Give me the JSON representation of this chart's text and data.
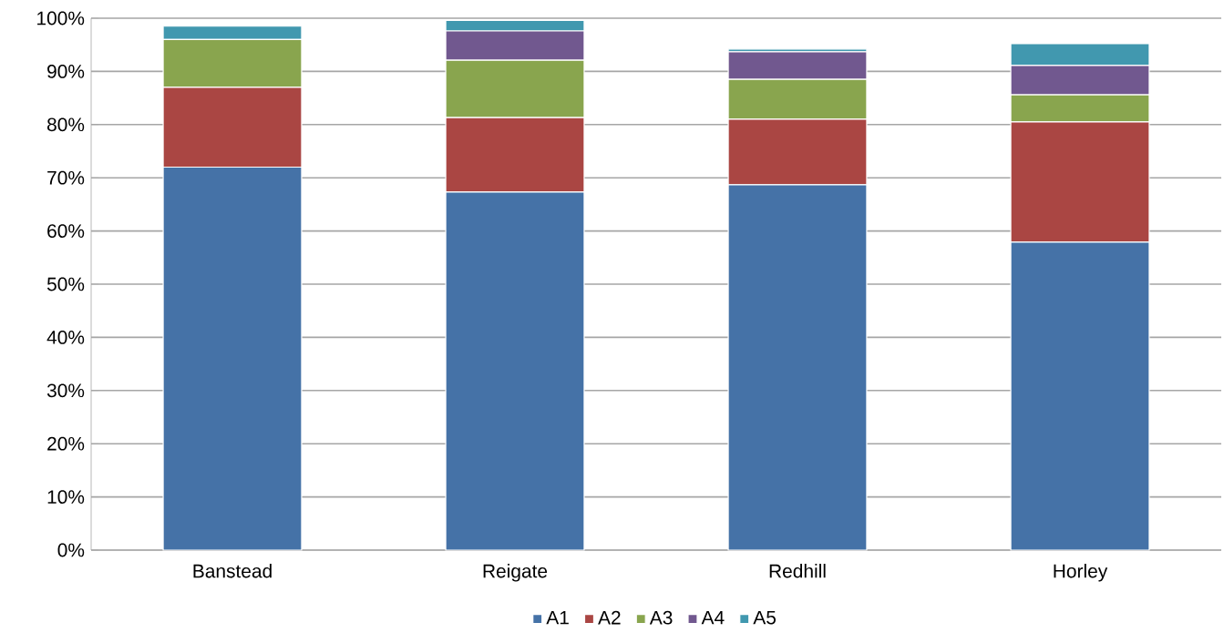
{
  "chart_data": {
    "type": "bar",
    "stacked": true,
    "categories": [
      "Banstead",
      "Reigate",
      "Redhill",
      "Horley"
    ],
    "series": [
      {
        "name": "A1",
        "color": "#4572a7",
        "values": [
          72,
          67.3,
          68.7,
          57.9
        ]
      },
      {
        "name": "A2",
        "color": "#aa4643",
        "values": [
          15,
          14,
          12.3,
          22.6
        ]
      },
      {
        "name": "A3",
        "color": "#89a54e",
        "values": [
          9,
          10.8,
          7.5,
          5.1
        ]
      },
      {
        "name": "A4",
        "color": "#71588f",
        "values": [
          0,
          5.5,
          5.2,
          5.5
        ]
      },
      {
        "name": "A5",
        "color": "#4198af",
        "values": [
          2.5,
          2,
          0.5,
          4.1
        ]
      }
    ],
    "ylim": [
      0,
      100
    ],
    "yticks": [
      {
        "value": 0,
        "label": "0%"
      },
      {
        "value": 10,
        "label": "10%"
      },
      {
        "value": 20,
        "label": "20%"
      },
      {
        "value": 30,
        "label": "30%"
      },
      {
        "value": 40,
        "label": "40%"
      },
      {
        "value": 50,
        "label": "50%"
      },
      {
        "value": 60,
        "label": "60%"
      },
      {
        "value": 70,
        "label": "70%"
      },
      {
        "value": 80,
        "label": "80%"
      },
      {
        "value": 90,
        "label": "90%"
      },
      {
        "value": 100,
        "label": "100%"
      }
    ],
    "grid": "y",
    "legend": "bottom"
  }
}
